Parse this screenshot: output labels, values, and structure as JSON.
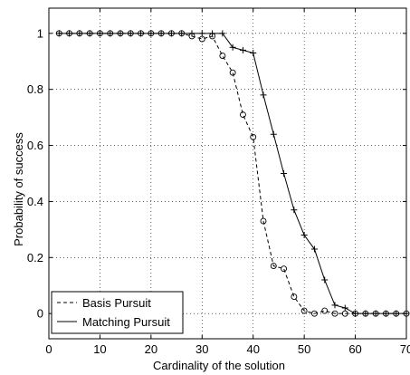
{
  "chart_data": {
    "type": "line",
    "title": "",
    "xlabel": "Cardinality of the solution",
    "ylabel": "Probability of success",
    "xlim": [
      0,
      70
    ],
    "ylim": [
      -0.09,
      1.09
    ],
    "xticks": [
      0,
      10,
      20,
      30,
      40,
      50,
      60,
      70
    ],
    "yticks": [
      0,
      0.2,
      0.4,
      0.6,
      0.8,
      1
    ],
    "xtick_labels": [
      "0",
      "10",
      "20",
      "30",
      "40",
      "50",
      "60",
      "70"
    ],
    "ytick_labels": [
      "0",
      "0.2",
      "0.4",
      "0.6",
      "0.8",
      "1"
    ],
    "grid": true,
    "legend_position": "bottom-left",
    "x": [
      2,
      4,
      6,
      8,
      10,
      12,
      14,
      16,
      18,
      20,
      22,
      24,
      26,
      28,
      30,
      32,
      34,
      36,
      38,
      40,
      42,
      44,
      46,
      48,
      50,
      52,
      54,
      56,
      58,
      60,
      62,
      64,
      66,
      68,
      70
    ],
    "series": [
      {
        "name": "Basis Pursuit",
        "line_style": "dashed",
        "marker": "circle",
        "values": [
          1,
          1,
          1,
          1,
          1,
          1,
          1,
          1,
          1,
          1,
          1,
          1,
          1,
          0.99,
          0.98,
          0.99,
          0.92,
          0.86,
          0.71,
          0.63,
          0.33,
          0.17,
          0.16,
          0.06,
          0.01,
          0,
          0.01,
          0,
          0,
          0,
          0,
          0,
          0,
          0,
          0
        ]
      },
      {
        "name": "Matching Pursuit",
        "line_style": "solid",
        "marker": "plus",
        "values": [
          1,
          1,
          1,
          1,
          1,
          1,
          1,
          1,
          1,
          1,
          1,
          1,
          1,
          1,
          1,
          1,
          1,
          0.95,
          0.94,
          0.93,
          0.78,
          0.64,
          0.5,
          0.37,
          0.28,
          0.23,
          0.12,
          0.03,
          0.02,
          0,
          0,
          0,
          0,
          0,
          0
        ]
      }
    ]
  }
}
